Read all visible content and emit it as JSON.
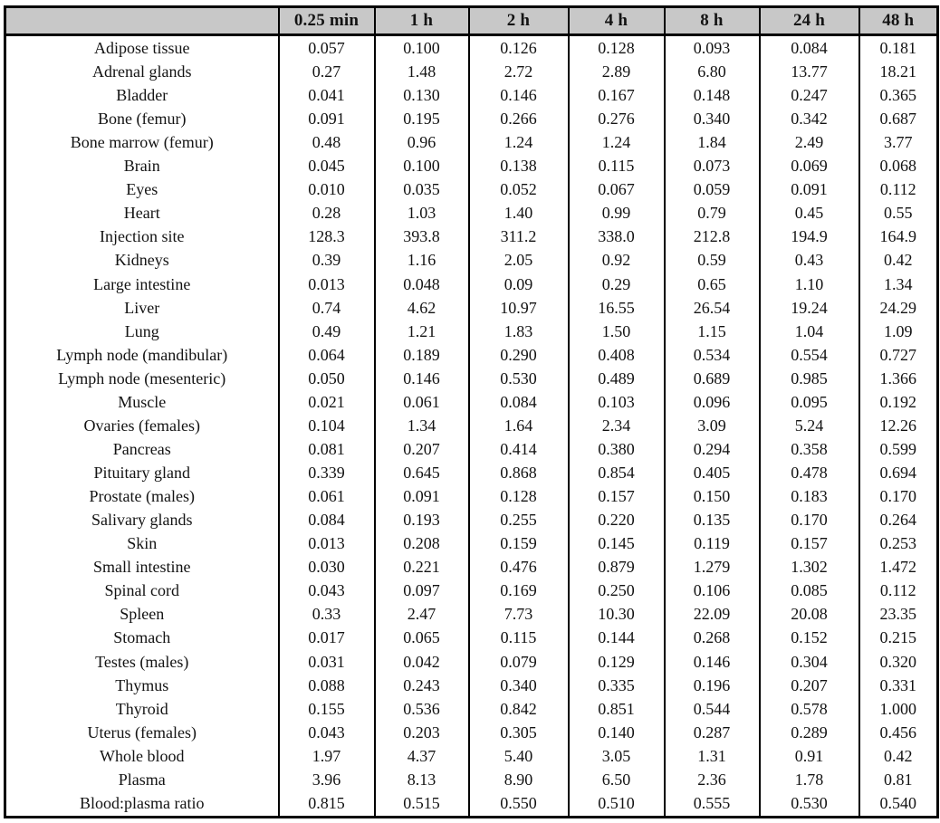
{
  "table": {
    "columns": [
      "",
      "0.25 min",
      "1 h",
      "2 h",
      "4 h",
      "8 h",
      "24 h",
      "48 h"
    ],
    "rows": [
      {
        "label": "Adipose tissue",
        "values": [
          "0.057",
          "0.100",
          "0.126",
          "0.128",
          "0.093",
          "0.084",
          "0.181"
        ]
      },
      {
        "label": "Adrenal glands",
        "values": [
          "0.27",
          "1.48",
          "2.72",
          "2.89",
          "6.80",
          "13.77",
          "18.21"
        ]
      },
      {
        "label": "Bladder",
        "values": [
          "0.041",
          "0.130",
          "0.146",
          "0.167",
          "0.148",
          "0.247",
          "0.365"
        ]
      },
      {
        "label": "Bone (femur)",
        "values": [
          "0.091",
          "0.195",
          "0.266",
          "0.276",
          "0.340",
          "0.342",
          "0.687"
        ]
      },
      {
        "label": "Bone marrow (femur)",
        "values": [
          "0.48",
          "0.96",
          "1.24",
          "1.24",
          "1.84",
          "2.49",
          "3.77"
        ]
      },
      {
        "label": "Brain",
        "values": [
          "0.045",
          "0.100",
          "0.138",
          "0.115",
          "0.073",
          "0.069",
          "0.068"
        ]
      },
      {
        "label": "Eyes",
        "values": [
          "0.010",
          "0.035",
          "0.052",
          "0.067",
          "0.059",
          "0.091",
          "0.112"
        ]
      },
      {
        "label": "Heart",
        "values": [
          "0.28",
          "1.03",
          "1.40",
          "0.99",
          "0.79",
          "0.45",
          "0.55"
        ]
      },
      {
        "label": "Injection site",
        "values": [
          "128.3",
          "393.8",
          "311.2",
          "338.0",
          "212.8",
          "194.9",
          "164.9"
        ]
      },
      {
        "label": "Kidneys",
        "values": [
          "0.39",
          "1.16",
          "2.05",
          "0.92",
          "0.59",
          "0.43",
          "0.42"
        ]
      },
      {
        "label": "Large intestine",
        "values": [
          "0.013",
          "0.048",
          "0.09",
          "0.29",
          "0.65",
          "1.10",
          "1.34"
        ]
      },
      {
        "label": "Liver",
        "values": [
          "0.74",
          "4.62",
          "10.97",
          "16.55",
          "26.54",
          "19.24",
          "24.29"
        ]
      },
      {
        "label": "Lung",
        "values": [
          "0.49",
          "1.21",
          "1.83",
          "1.50",
          "1.15",
          "1.04",
          "1.09"
        ]
      },
      {
        "label": "Lymph node (mandibular)",
        "values": [
          "0.064",
          "0.189",
          "0.290",
          "0.408",
          "0.534",
          "0.554",
          "0.727"
        ]
      },
      {
        "label": "Lymph node (mesenteric)",
        "values": [
          "0.050",
          "0.146",
          "0.530",
          "0.489",
          "0.689",
          "0.985",
          "1.366"
        ]
      },
      {
        "label": "Muscle",
        "values": [
          "0.021",
          "0.061",
          "0.084",
          "0.103",
          "0.096",
          "0.095",
          "0.192"
        ]
      },
      {
        "label": "Ovaries (females)",
        "values": [
          "0.104",
          "1.34",
          "1.64",
          "2.34",
          "3.09",
          "5.24",
          "12.26"
        ]
      },
      {
        "label": "Pancreas",
        "values": [
          "0.081",
          "0.207",
          "0.414",
          "0.380",
          "0.294",
          "0.358",
          "0.599"
        ]
      },
      {
        "label": "Pituitary gland",
        "values": [
          "0.339",
          "0.645",
          "0.868",
          "0.854",
          "0.405",
          "0.478",
          "0.694"
        ]
      },
      {
        "label": "Prostate (males)",
        "values": [
          "0.061",
          "0.091",
          "0.128",
          "0.157",
          "0.150",
          "0.183",
          "0.170"
        ]
      },
      {
        "label": "Salivary glands",
        "values": [
          "0.084",
          "0.193",
          "0.255",
          "0.220",
          "0.135",
          "0.170",
          "0.264"
        ]
      },
      {
        "label": "Skin",
        "values": [
          "0.013",
          "0.208",
          "0.159",
          "0.145",
          "0.119",
          "0.157",
          "0.253"
        ]
      },
      {
        "label": "Small intestine",
        "values": [
          "0.030",
          "0.221",
          "0.476",
          "0.879",
          "1.279",
          "1.302",
          "1.472"
        ]
      },
      {
        "label": "Spinal cord",
        "values": [
          "0.043",
          "0.097",
          "0.169",
          "0.250",
          "0.106",
          "0.085",
          "0.112"
        ]
      },
      {
        "label": "Spleen",
        "values": [
          "0.33",
          "2.47",
          "7.73",
          "10.30",
          "22.09",
          "20.08",
          "23.35"
        ]
      },
      {
        "label": "Stomach",
        "values": [
          "0.017",
          "0.065",
          "0.115",
          "0.144",
          "0.268",
          "0.152",
          "0.215"
        ]
      },
      {
        "label": "Testes (males)",
        "values": [
          "0.031",
          "0.042",
          "0.079",
          "0.129",
          "0.146",
          "0.304",
          "0.320"
        ]
      },
      {
        "label": "Thymus",
        "values": [
          "0.088",
          "0.243",
          "0.340",
          "0.335",
          "0.196",
          "0.207",
          "0.331"
        ]
      },
      {
        "label": "Thyroid",
        "values": [
          "0.155",
          "0.536",
          "0.842",
          "0.851",
          "0.544",
          "0.578",
          "1.000"
        ]
      },
      {
        "label": "Uterus (females)",
        "values": [
          "0.043",
          "0.203",
          "0.305",
          "0.140",
          "0.287",
          "0.289",
          "0.456"
        ]
      },
      {
        "label": "Whole blood",
        "values": [
          "1.97",
          "4.37",
          "5.40",
          "3.05",
          "1.31",
          "0.91",
          "0.42"
        ]
      },
      {
        "label": "Plasma",
        "values": [
          "3.96",
          "8.13",
          "8.90",
          "6.50",
          "2.36",
          "1.78",
          "0.81"
        ]
      },
      {
        "label": "Blood:plasma ratio",
        "values": [
          "0.815",
          "0.515",
          "0.550",
          "0.510",
          "0.555",
          "0.530",
          "0.540"
        ]
      }
    ]
  },
  "colors": {
    "header_bg": "#c8c8c8",
    "border": "#000000",
    "text": "#131313",
    "background": "#ffffff"
  }
}
